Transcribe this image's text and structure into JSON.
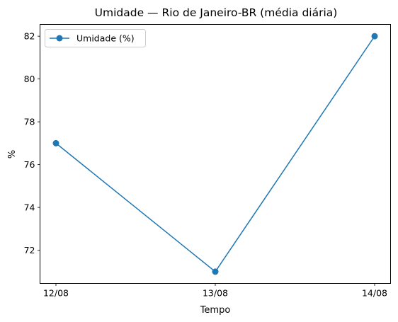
{
  "chart_data": {
    "type": "line",
    "title": "Umidade — Rio de Janeiro-BR (média diária)",
    "xlabel": "Tempo",
    "ylabel": "%",
    "categories": [
      "12/08",
      "13/08",
      "14/08"
    ],
    "series": [
      {
        "name": "Umidade (%)",
        "values": [
          77,
          71,
          82
        ],
        "color": "#1f77b4",
        "marker": "circle"
      }
    ],
    "ylim": [
      70.45,
      82.55
    ],
    "yticks": [
      72,
      74,
      76,
      78,
      80,
      82
    ],
    "grid": false,
    "legend": "top-left"
  }
}
